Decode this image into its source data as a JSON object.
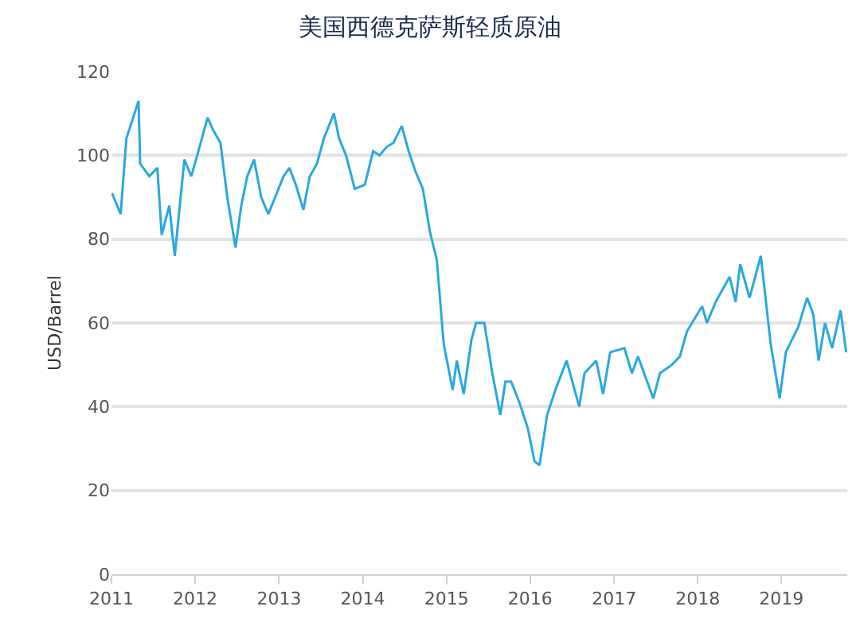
{
  "chart_data": {
    "type": "line",
    "title": "美国西德克萨斯轻质原油",
    "ylabel": "USD/Barrel",
    "x": [
      "2011-01-03",
      "2011-02-10",
      "2011-03-07",
      "2011-04-29",
      "2011-05-06",
      "2011-06-15",
      "2011-07-20",
      "2011-08-08",
      "2011-09-10",
      "2011-10-04",
      "2011-11-15",
      "2011-12-15",
      "2012-01-15",
      "2012-02-24",
      "2012-03-20",
      "2012-04-20",
      "2012-05-20",
      "2012-06-25",
      "2012-07-20",
      "2012-08-15",
      "2012-09-14",
      "2012-10-15",
      "2012-11-15",
      "2012-12-15",
      "2013-01-20",
      "2013-02-15",
      "2013-03-15",
      "2013-04-17",
      "2013-05-15",
      "2013-06-15",
      "2013-07-15",
      "2013-08-28",
      "2013-09-20",
      "2013-10-20",
      "2013-11-27",
      "2014-01-10",
      "2014-02-15",
      "2014-03-15",
      "2014-04-15",
      "2014-05-15",
      "2014-06-20",
      "2014-07-20",
      "2014-08-20",
      "2014-09-20",
      "2014-10-20",
      "2014-11-20",
      "2014-12-20",
      "2015-01-28",
      "2015-02-15",
      "2015-03-17",
      "2015-04-20",
      "2015-05-10",
      "2015-06-15",
      "2015-07-20",
      "2015-08-24",
      "2015-09-15",
      "2015-10-10",
      "2015-11-15",
      "2015-12-21",
      "2016-01-20",
      "2016-02-11",
      "2016-03-15",
      "2016-04-20",
      "2016-06-08",
      "2016-08-02",
      "2016-08-25",
      "2016-10-15",
      "2016-11-14",
      "2016-12-15",
      "2017-02-15",
      "2017-03-20",
      "2017-04-15",
      "2017-06-21",
      "2017-07-20",
      "2017-09-10",
      "2017-10-15",
      "2017-11-15",
      "2018-01-20",
      "2018-02-10",
      "2018-03-20",
      "2018-05-20",
      "2018-06-15",
      "2018-07-05",
      "2018-08-15",
      "2018-10-03",
      "2018-11-15",
      "2018-12-24",
      "2019-01-20",
      "2019-03-15",
      "2019-04-23",
      "2019-05-20",
      "2019-06-12",
      "2019-07-10",
      "2019-08-10",
      "2019-09-16",
      "2019-10-10"
    ],
    "values": [
      91,
      86,
      104,
      113,
      98,
      95,
      97,
      81,
      88,
      76,
      99,
      95,
      101,
      109,
      106,
      103,
      90,
      78,
      88,
      95,
      99,
      90,
      86,
      90,
      95,
      97,
      93,
      87,
      95,
      98,
      104,
      110,
      104,
      100,
      92,
      93,
      101,
      100,
      102,
      103,
      107,
      101,
      96,
      92,
      82,
      75,
      55,
      44,
      51,
      43,
      56,
      60,
      60,
      48,
      38,
      46,
      46,
      41,
      35,
      27,
      26,
      38,
      44,
      51,
      40,
      48,
      51,
      43,
      53,
      54,
      48,
      52,
      42,
      48,
      50,
      52,
      58,
      64,
      60,
      65,
      71,
      65,
      74,
      66,
      76,
      55,
      42,
      53,
      59,
      66,
      62,
      51,
      60,
      54,
      63,
      53
    ],
    "color": "#29a8e0",
    "xlim": [
      "2011-01-01",
      "2019-10-15"
    ],
    "ylim": [
      0,
      120
    ],
    "xticks": [
      "2011",
      "2012",
      "2013",
      "2014",
      "2015",
      "2016",
      "2017",
      "2018",
      "2019"
    ],
    "yticks": [
      0,
      20,
      40,
      60,
      80,
      100,
      120
    ],
    "grid": "y",
    "marker": "none",
    "line_style": "solid"
  }
}
